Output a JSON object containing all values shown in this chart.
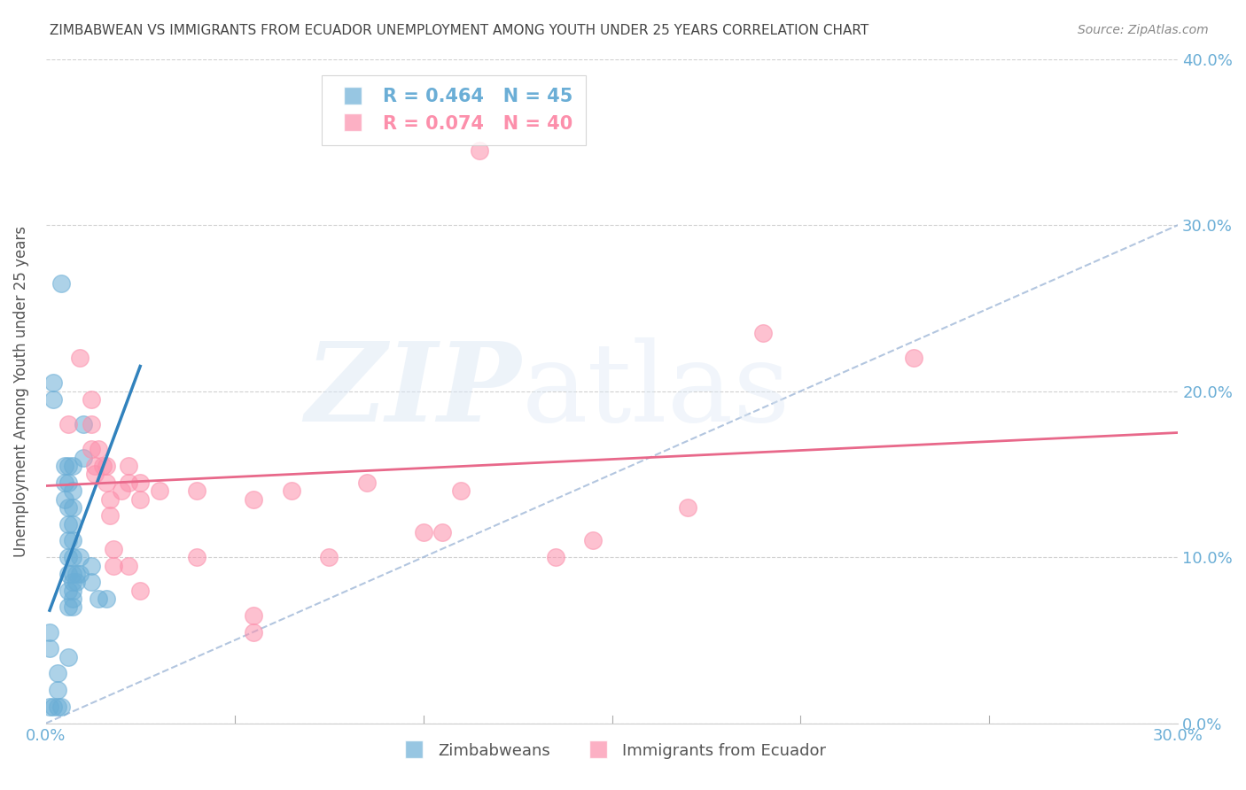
{
  "title": "ZIMBABWEAN VS IMMIGRANTS FROM ECUADOR UNEMPLOYMENT AMONG YOUTH UNDER 25 YEARS CORRELATION CHART",
  "source": "Source: ZipAtlas.com",
  "ylabel": "Unemployment Among Youth under 25 years",
  "xlim": [
    0,
    0.3
  ],
  "ylim": [
    0,
    0.4
  ],
  "xticks": [
    0.0,
    0.05,
    0.1,
    0.15,
    0.2,
    0.25,
    0.3
  ],
  "yticks": [
    0.0,
    0.1,
    0.2,
    0.3,
    0.4
  ],
  "right_ytick_labels": [
    "0.0%",
    "10.0%",
    "20.0%",
    "30.0%",
    "40.0%"
  ],
  "zim_color": "#6baed6",
  "ecu_color": "#fc8fab",
  "zim_scatter": [
    [
      0.002,
      0.205
    ],
    [
      0.002,
      0.195
    ],
    [
      0.004,
      0.265
    ],
    [
      0.005,
      0.155
    ],
    [
      0.005,
      0.145
    ],
    [
      0.005,
      0.135
    ],
    [
      0.006,
      0.155
    ],
    [
      0.006,
      0.145
    ],
    [
      0.006,
      0.13
    ],
    [
      0.006,
      0.12
    ],
    [
      0.006,
      0.11
    ],
    [
      0.006,
      0.1
    ],
    [
      0.006,
      0.09
    ],
    [
      0.006,
      0.08
    ],
    [
      0.006,
      0.07
    ],
    [
      0.007,
      0.155
    ],
    [
      0.007,
      0.14
    ],
    [
      0.007,
      0.13
    ],
    [
      0.007,
      0.12
    ],
    [
      0.007,
      0.11
    ],
    [
      0.007,
      0.1
    ],
    [
      0.007,
      0.09
    ],
    [
      0.007,
      0.085
    ],
    [
      0.007,
      0.08
    ],
    [
      0.007,
      0.075
    ],
    [
      0.007,
      0.07
    ],
    [
      0.008,
      0.09
    ],
    [
      0.008,
      0.085
    ],
    [
      0.01,
      0.18
    ],
    [
      0.01,
      0.16
    ],
    [
      0.012,
      0.095
    ],
    [
      0.012,
      0.085
    ],
    [
      0.014,
      0.075
    ],
    [
      0.016,
      0.075
    ],
    [
      0.001,
      0.01
    ],
    [
      0.002,
      0.01
    ],
    [
      0.003,
      0.01
    ],
    [
      0.004,
      0.01
    ],
    [
      0.006,
      0.04
    ],
    [
      0.003,
      0.02
    ],
    [
      0.003,
      0.03
    ],
    [
      0.001,
      0.055
    ],
    [
      0.001,
      0.045
    ],
    [
      0.009,
      0.09
    ],
    [
      0.009,
      0.1
    ]
  ],
  "ecu_scatter": [
    [
      0.006,
      0.18
    ],
    [
      0.009,
      0.22
    ],
    [
      0.012,
      0.195
    ],
    [
      0.012,
      0.18
    ],
    [
      0.012,
      0.165
    ],
    [
      0.013,
      0.155
    ],
    [
      0.013,
      0.15
    ],
    [
      0.014,
      0.165
    ],
    [
      0.015,
      0.155
    ],
    [
      0.016,
      0.155
    ],
    [
      0.016,
      0.145
    ],
    [
      0.017,
      0.135
    ],
    [
      0.017,
      0.125
    ],
    [
      0.018,
      0.105
    ],
    [
      0.018,
      0.095
    ],
    [
      0.02,
      0.14
    ],
    [
      0.022,
      0.155
    ],
    [
      0.022,
      0.145
    ],
    [
      0.022,
      0.095
    ],
    [
      0.025,
      0.145
    ],
    [
      0.025,
      0.135
    ],
    [
      0.025,
      0.08
    ],
    [
      0.03,
      0.14
    ],
    [
      0.04,
      0.14
    ],
    [
      0.04,
      0.1
    ],
    [
      0.055,
      0.135
    ],
    [
      0.055,
      0.065
    ],
    [
      0.055,
      0.055
    ],
    [
      0.065,
      0.14
    ],
    [
      0.075,
      0.1
    ],
    [
      0.085,
      0.145
    ],
    [
      0.1,
      0.115
    ],
    [
      0.105,
      0.115
    ],
    [
      0.11,
      0.14
    ],
    [
      0.115,
      0.345
    ],
    [
      0.135,
      0.1
    ],
    [
      0.145,
      0.11
    ],
    [
      0.17,
      0.13
    ],
    [
      0.19,
      0.235
    ],
    [
      0.23,
      0.22
    ]
  ],
  "zim_line": {
    "x_start": 0.001,
    "y_start": 0.068,
    "x_end": 0.025,
    "y_end": 0.215
  },
  "ecu_line": {
    "x_start": 0.0,
    "y_start": 0.143,
    "x_end": 0.3,
    "y_end": 0.175
  },
  "ref_line": {
    "x_start": 0.0,
    "y_start": 0.0,
    "x_end": 0.3,
    "y_end": 0.3
  },
  "background_color": "#ffffff",
  "grid_color": "#cccccc",
  "title_color": "#444444",
  "axis_label_color": "#555555",
  "right_axis_color": "#6baed6"
}
